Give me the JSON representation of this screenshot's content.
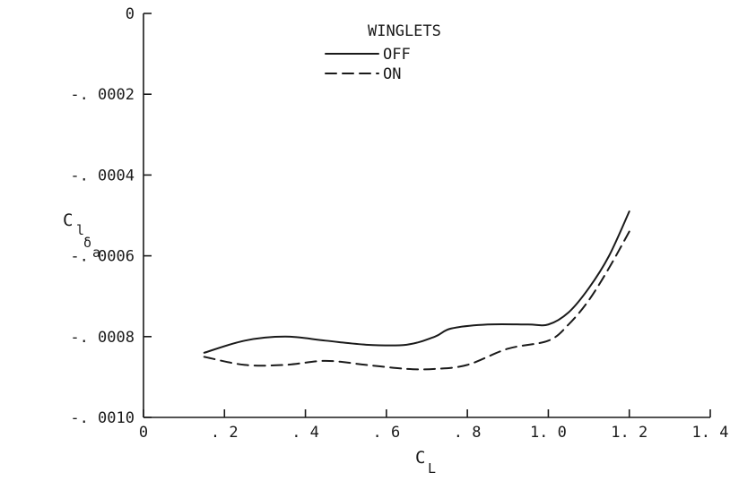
{
  "chart_data": {
    "type": "line",
    "title": "",
    "xlabel": {
      "main": "C",
      "sub": "L"
    },
    "ylabel": {
      "main": "C",
      "sub": "l",
      "subsub": "δ",
      "subsubsub": "a"
    },
    "xlim": [
      0,
      1.4
    ],
    "ylim": [
      -0.001,
      0
    ],
    "x_ticks": [
      0,
      0.2,
      0.4,
      0.6,
      0.8,
      1.0,
      1.2,
      1.4
    ],
    "x_tick_labels": [
      "0",
      ". 2",
      ". 4",
      ". 6",
      ". 8",
      "1. 0",
      "1. 2",
      "1. 4"
    ],
    "y_ticks": [
      0,
      -0.0002,
      -0.0004,
      -0.0006,
      -0.0008,
      -0.001
    ],
    "y_tick_labels": [
      "0",
      "-. 0002",
      "-. 0004",
      "-. 0006",
      "-. 0008",
      "-. 0010"
    ],
    "grid": false,
    "legend": {
      "title": "WINGLETS",
      "placement": "top-center"
    },
    "series": [
      {
        "name": "OFF",
        "style": "solid",
        "x": [
          0.15,
          0.25,
          0.35,
          0.45,
          0.55,
          0.65,
          0.72,
          0.76,
          0.85,
          0.95,
          1.0,
          1.05,
          1.1,
          1.15,
          1.2
        ],
        "y": [
          -0.00084,
          -0.00081,
          -0.0008,
          -0.00081,
          -0.00082,
          -0.00082,
          -0.0008,
          -0.00078,
          -0.00077,
          -0.00077,
          -0.00077,
          -0.00074,
          -0.00068,
          -0.0006,
          -0.00049
        ]
      },
      {
        "name": "ON",
        "style": "dashed",
        "x": [
          0.15,
          0.25,
          0.35,
          0.45,
          0.55,
          0.65,
          0.72,
          0.8,
          0.9,
          1.0,
          1.05,
          1.1,
          1.15,
          1.2
        ],
        "y": [
          -0.00085,
          -0.00087,
          -0.00087,
          -0.00086,
          -0.00087,
          -0.00088,
          -0.00088,
          -0.00087,
          -0.00083,
          -0.00081,
          -0.00077,
          -0.00071,
          -0.00063,
          -0.00054
        ]
      }
    ]
  }
}
